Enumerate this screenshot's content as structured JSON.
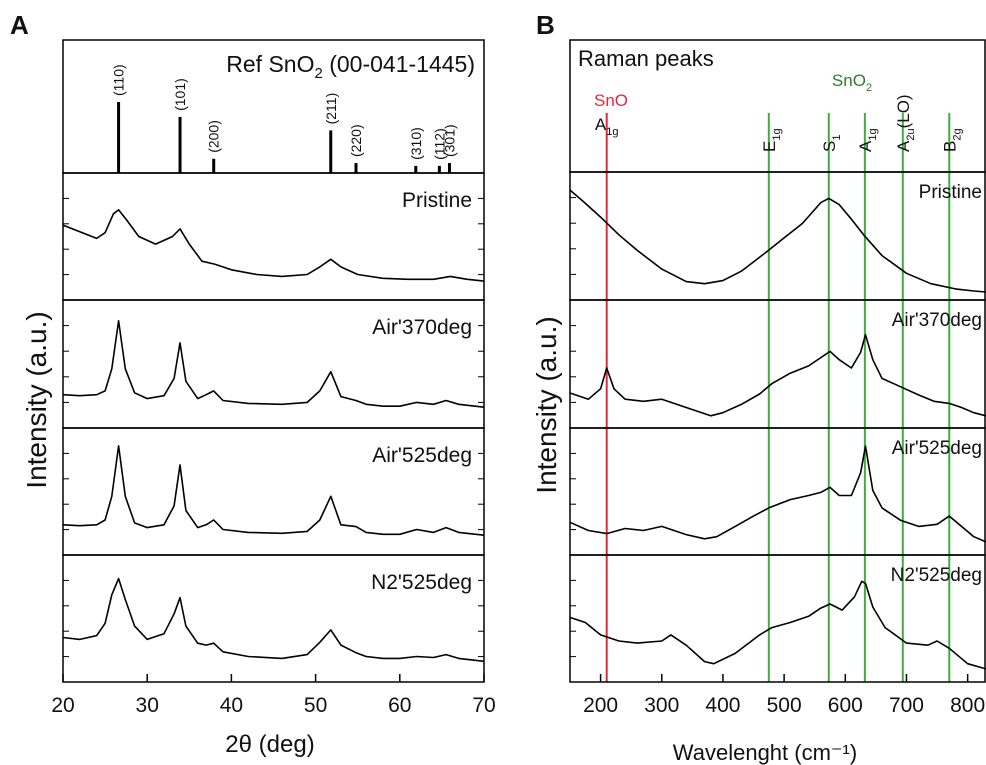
{
  "chart_data": [
    {
      "type": "line",
      "panel_label": "A",
      "ylabel": "Intensity (a.u.)",
      "xlabel": "2θ (deg)",
      "xlim": [
        20,
        70
      ],
      "xticks": [
        20,
        30,
        40,
        50,
        60,
        70
      ],
      "reference": {
        "title_prefix": "Ref SnO",
        "title_sub": "2",
        "title_suffix": " (00-041-1445)",
        "peaks": [
          {
            "pos": 26.6,
            "label": "(110)",
            "height": 1.0
          },
          {
            "pos": 33.9,
            "label": "(101)",
            "height": 0.79
          },
          {
            "pos": 37.9,
            "label": "(200)",
            "height": 0.2
          },
          {
            "pos": 51.8,
            "label": "(211)",
            "height": 0.6
          },
          {
            "pos": 54.8,
            "label": "(220)",
            "height": 0.14
          },
          {
            "pos": 61.9,
            "label": "(310)",
            "height": 0.1
          },
          {
            "pos": 64.7,
            "label": "(112)",
            "height": 0.1
          },
          {
            "pos": 65.9,
            "label": "(301)",
            "height": 0.14
          }
        ]
      },
      "series": [
        {
          "name": "Pristine",
          "x": [
            20,
            22,
            24,
            25,
            26,
            26.6,
            27.5,
            29,
            31,
            33,
            33.9,
            35,
            36.5,
            38,
            40,
            43,
            46,
            49,
            50.5,
            51.8,
            53,
            55,
            58,
            61,
            64,
            66,
            68,
            70
          ],
          "y": [
            0.62,
            0.55,
            0.48,
            0.54,
            0.74,
            0.78,
            0.68,
            0.5,
            0.42,
            0.5,
            0.58,
            0.42,
            0.24,
            0.21,
            0.15,
            0.1,
            0.08,
            0.1,
            0.18,
            0.26,
            0.18,
            0.1,
            0.06,
            0.05,
            0.05,
            0.08,
            0.05,
            0.03
          ]
        },
        {
          "name": "Air'370deg",
          "x": [
            20,
            22,
            24,
            25,
            25.8,
            26.6,
            27.4,
            28.5,
            30,
            32,
            33.2,
            33.9,
            34.6,
            36,
            37,
            37.9,
            39,
            42,
            46,
            49,
            50.5,
            51.8,
            53,
            54.8,
            56,
            58,
            60,
            62,
            64,
            65.5,
            67,
            70
          ],
          "y": [
            0.18,
            0.17,
            0.18,
            0.22,
            0.45,
            0.95,
            0.45,
            0.2,
            0.14,
            0.17,
            0.35,
            0.72,
            0.32,
            0.14,
            0.18,
            0.22,
            0.12,
            0.09,
            0.08,
            0.1,
            0.22,
            0.42,
            0.16,
            0.12,
            0.08,
            0.06,
            0.06,
            0.1,
            0.08,
            0.12,
            0.08,
            0.05
          ]
        },
        {
          "name": "Air'525deg",
          "x": [
            20,
            22,
            24,
            25,
            25.8,
            26.6,
            27.4,
            28.5,
            30,
            32,
            33.2,
            33.9,
            34.6,
            36,
            37,
            37.9,
            39,
            42,
            46,
            49,
            50.5,
            51.8,
            53,
            54.8,
            56,
            58,
            60,
            62,
            64,
            65.5,
            67,
            70
          ],
          "y": [
            0.15,
            0.14,
            0.15,
            0.2,
            0.45,
            0.98,
            0.45,
            0.17,
            0.12,
            0.15,
            0.35,
            0.78,
            0.3,
            0.12,
            0.15,
            0.2,
            0.1,
            0.07,
            0.06,
            0.08,
            0.2,
            0.45,
            0.15,
            0.13,
            0.07,
            0.05,
            0.05,
            0.1,
            0.07,
            0.12,
            0.07,
            0.04
          ]
        },
        {
          "name": "N2'525deg",
          "x": [
            20,
            22,
            24,
            25,
            25.8,
            26.6,
            27.4,
            28.5,
            30,
            32,
            33.2,
            33.9,
            34.6,
            36,
            37,
            37.9,
            39,
            42,
            46,
            49,
            50.5,
            51.8,
            53,
            54.8,
            56,
            58,
            60,
            62,
            64,
            65.5,
            67,
            70
          ],
          "y": [
            0.3,
            0.28,
            0.32,
            0.45,
            0.75,
            0.92,
            0.7,
            0.42,
            0.28,
            0.34,
            0.55,
            0.72,
            0.42,
            0.24,
            0.22,
            0.24,
            0.15,
            0.1,
            0.08,
            0.12,
            0.25,
            0.38,
            0.22,
            0.14,
            0.1,
            0.08,
            0.08,
            0.1,
            0.09,
            0.12,
            0.08,
            0.05
          ]
        }
      ]
    },
    {
      "type": "line",
      "panel_label": "B",
      "ylabel": "Intensity (a.u.)",
      "xlabel": "Wavelenght (cm⁻¹)",
      "xlim": [
        150,
        830
      ],
      "xticks": [
        200,
        300,
        400,
        500,
        600,
        700,
        800
      ],
      "reference": {
        "title": "Raman peaks",
        "sno_label": "SnO",
        "sno2_label_main": "SnO",
        "sno2_label_sub": "2",
        "lines": [
          {
            "pos": 210,
            "color": "#e8283a",
            "label_main": "A",
            "label_sub": "1g",
            "vertical": false
          },
          {
            "pos": 475,
            "color": "#3fae3f",
            "label_main": "E",
            "label_sub": "1g",
            "vertical": true
          },
          {
            "pos": 573,
            "color": "#3fae3f",
            "label_main": "S",
            "label_sub": "1",
            "vertical": true
          },
          {
            "pos": 632,
            "color": "#3fae3f",
            "label_main": "A",
            "label_sub": "1g",
            "vertical": true
          },
          {
            "pos": 694,
            "color": "#3fae3f",
            "label_main": "A",
            "label_sub": "2u",
            "label_tail": "(LO)",
            "vertical": true
          },
          {
            "pos": 770,
            "color": "#3fae3f",
            "label_main": "B",
            "label_sub": "2g",
            "vertical": true
          }
        ]
      },
      "series": [
        {
          "name": "Pristine",
          "x": [
            150,
            170,
            200,
            230,
            260,
            300,
            340,
            370,
            400,
            430,
            470,
            500,
            530,
            560,
            573,
            590,
            610,
            630,
            660,
            700,
            740,
            780,
            810,
            830
          ],
          "y": [
            0.98,
            0.88,
            0.72,
            0.55,
            0.4,
            0.22,
            0.1,
            0.08,
            0.11,
            0.2,
            0.38,
            0.52,
            0.66,
            0.86,
            0.9,
            0.84,
            0.7,
            0.55,
            0.35,
            0.18,
            0.08,
            0.03,
            0.01,
            0.0
          ]
        },
        {
          "name": "Air'370deg",
          "x": [
            150,
            180,
            200,
            210,
            222,
            240,
            270,
            300,
            340,
            380,
            400,
            430,
            460,
            480,
            510,
            540,
            560,
            575,
            590,
            610,
            625,
            633,
            645,
            660,
            690,
            720,
            745,
            770,
            790,
            810,
            830
          ],
          "y": [
            0.26,
            0.2,
            0.3,
            0.5,
            0.3,
            0.2,
            0.18,
            0.2,
            0.12,
            0.04,
            0.07,
            0.15,
            0.25,
            0.35,
            0.45,
            0.52,
            0.6,
            0.66,
            0.58,
            0.5,
            0.65,
            0.82,
            0.58,
            0.4,
            0.32,
            0.24,
            0.18,
            0.16,
            0.12,
            0.07,
            0.04
          ]
        },
        {
          "name": "Air'525deg",
          "x": [
            150,
            180,
            210,
            240,
            270,
            300,
            340,
            370,
            390,
            420,
            450,
            475,
            510,
            540,
            560,
            575,
            590,
            610,
            625,
            633,
            645,
            660,
            690,
            720,
            750,
            770,
            790,
            810,
            830
          ],
          "y": [
            0.24,
            0.16,
            0.13,
            0.18,
            0.16,
            0.2,
            0.12,
            0.08,
            0.1,
            0.2,
            0.3,
            0.38,
            0.46,
            0.5,
            0.53,
            0.58,
            0.5,
            0.5,
            0.72,
            0.98,
            0.55,
            0.38,
            0.26,
            0.2,
            0.22,
            0.3,
            0.2,
            0.1,
            0.05
          ]
        },
        {
          "name": "N2'525deg",
          "x": [
            150,
            175,
            200,
            230,
            260,
            300,
            315,
            340,
            370,
            385,
            420,
            460,
            480,
            510,
            540,
            560,
            575,
            595,
            615,
            627,
            633,
            645,
            665,
            700,
            735,
            750,
            770,
            800,
            830
          ],
          "y": [
            0.55,
            0.5,
            0.38,
            0.32,
            0.3,
            0.32,
            0.38,
            0.28,
            0.12,
            0.1,
            0.2,
            0.38,
            0.45,
            0.5,
            0.56,
            0.64,
            0.68,
            0.62,
            0.75,
            0.9,
            0.88,
            0.65,
            0.45,
            0.3,
            0.28,
            0.32,
            0.25,
            0.1,
            0.05
          ]
        }
      ]
    }
  ]
}
